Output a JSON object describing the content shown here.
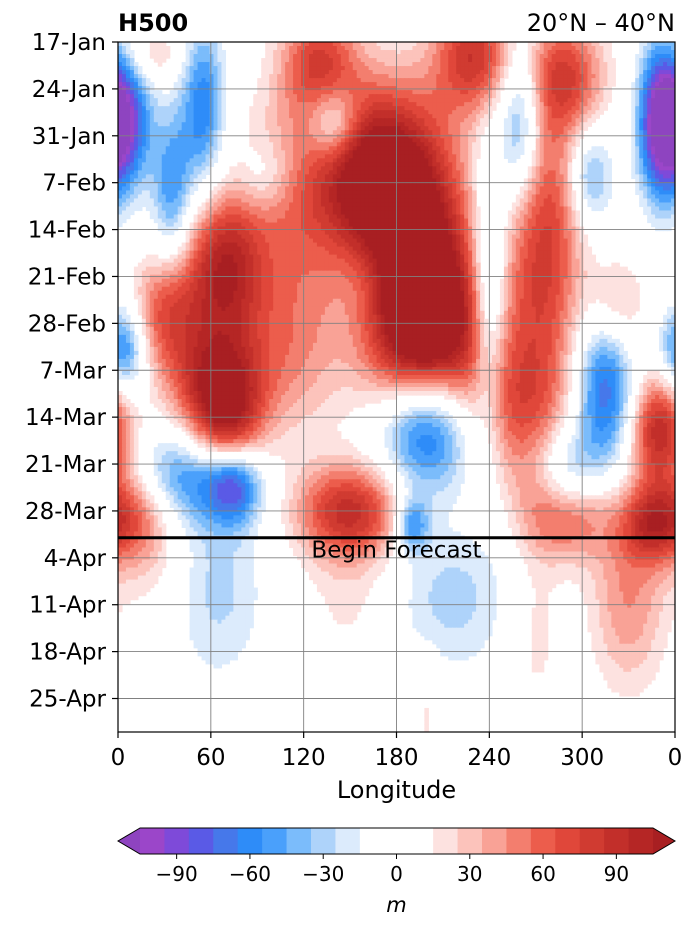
{
  "chart_data": {
    "type": "heatmap",
    "title": "H500",
    "subtitle": "20°N – 40°N",
    "xlabel": "Longitude",
    "x_ticks": [
      "0",
      "60",
      "120",
      "180",
      "240",
      "300",
      "0"
    ],
    "x_tick_values": [
      0,
      60,
      120,
      180,
      240,
      300,
      360
    ],
    "xlim": [
      0,
      360
    ],
    "y_ticks": [
      "17-Jan",
      "24-Jan",
      "31-Jan",
      "7-Feb",
      "14-Feb",
      "21-Feb",
      "28-Feb",
      "7-Mar",
      "14-Mar",
      "21-Mar",
      "28-Mar",
      "4-Apr",
      "11-Apr",
      "18-Apr",
      "25-Apr"
    ],
    "y_tick_days": [
      0,
      7,
      14,
      21,
      28,
      35,
      42,
      49,
      56,
      63,
      70,
      77,
      84,
      91,
      98
    ],
    "ylim_days": [
      0,
      103
    ],
    "y_direction": "downward",
    "grid": true,
    "forecast_start_day": 74,
    "forecast_label": "Begin Forecast",
    "colorbar": {
      "label": "m",
      "ticks": [
        "−90",
        "−60",
        "−30",
        "0",
        "30",
        "60",
        "90"
      ],
      "tick_values": [
        -90,
        -60,
        -30,
        0,
        30,
        60,
        90
      ],
      "levels": [
        -105,
        -95,
        -85,
        -75,
        -65,
        -55,
        -45,
        -35,
        -25,
        -15,
        0,
        15,
        25,
        35,
        45,
        55,
        65,
        75,
        85,
        95,
        105
      ],
      "colors": [
        "#9b46c9",
        "#7e4ad9",
        "#5a5ae6",
        "#4678ea",
        "#2e8cf8",
        "#4aa0fb",
        "#7bbcfb",
        "#aed3fa",
        "#dcebfc",
        "#ffffff",
        "#ffffff",
        "#fde2e0",
        "#fcc3bb",
        "#f9a296",
        "#f37e6e",
        "#ec5d4c",
        "#e0473a",
        "#d03b31",
        "#c22f2a",
        "#b52625"
      ],
      "extend": "both",
      "under_color": "#8e44c0",
      "over_color": "#a81f22"
    },
    "features": [
      {
        "lon": 4,
        "day": 12,
        "value": -95,
        "rlon": 12,
        "rday": 7
      },
      {
        "lon": 4,
        "day": 46,
        "value": -70,
        "rlon": 10,
        "rday": 5
      },
      {
        "lon": 22,
        "day": 2,
        "value": 30,
        "rlon": 14,
        "rday": 3
      },
      {
        "lon": 35,
        "day": 22,
        "value": -55,
        "rlon": 9,
        "rday": 8
      },
      {
        "lon": 30,
        "day": 40,
        "value": 60,
        "rlon": 16,
        "rday": 6
      },
      {
        "lon": 55,
        "day": 10,
        "value": -65,
        "rlon": 10,
        "rday": 9
      },
      {
        "lon": 68,
        "day": 34,
        "value": 95,
        "rlon": 18,
        "rday": 8
      },
      {
        "lon": 60,
        "day": 50,
        "value": 70,
        "rlon": 22,
        "rday": 6
      },
      {
        "lon": 70,
        "day": 57,
        "value": 85,
        "rlon": 16,
        "rday": 6
      },
      {
        "lon": 45,
        "day": 65,
        "value": -60,
        "rlon": 28,
        "rday": 5
      },
      {
        "lon": 75,
        "day": 66,
        "value": -70,
        "rlon": 12,
        "rday": 4
      },
      {
        "lon": 10,
        "day": 70,
        "value": 60,
        "rlon": 18,
        "rday": 5
      },
      {
        "lon": 95,
        "day": 20,
        "value": -30,
        "rlon": 14,
        "rday": 4
      },
      {
        "lon": 120,
        "day": 22,
        "value": 55,
        "rlon": 30,
        "rday": 10
      },
      {
        "lon": 110,
        "day": 45,
        "value": 45,
        "rlon": 25,
        "rday": 10
      },
      {
        "lon": 130,
        "day": 3,
        "value": 70,
        "rlon": 18,
        "rday": 6
      },
      {
        "lon": 140,
        "day": 12,
        "value": -55,
        "rlon": 12,
        "rday": 4
      },
      {
        "lon": 165,
        "day": 20,
        "value": 100,
        "rlon": 22,
        "rday": 9
      },
      {
        "lon": 195,
        "day": 30,
        "value": 110,
        "rlon": 24,
        "rday": 14
      },
      {
        "lon": 200,
        "day": 44,
        "value": 105,
        "rlon": 28,
        "rday": 9
      },
      {
        "lon": 162,
        "day": 35,
        "value": -20,
        "rlon": 15,
        "rday": 6
      },
      {
        "lon": 200,
        "day": 57,
        "value": -105,
        "rlon": 22,
        "rday": 7
      },
      {
        "lon": 150,
        "day": 70,
        "value": 85,
        "rlon": 25,
        "rday": 5
      },
      {
        "lon": 190,
        "day": 72,
        "value": -60,
        "rlon": 8,
        "rday": 3
      },
      {
        "lon": 230,
        "day": 2,
        "value": 80,
        "rlon": 18,
        "rday": 6
      },
      {
        "lon": 260,
        "day": 12,
        "value": -70,
        "rlon": 10,
        "rday": 9
      },
      {
        "lon": 240,
        "day": 38,
        "value": -60,
        "rlon": 8,
        "rday": 14
      },
      {
        "lon": 275,
        "day": 30,
        "value": 80,
        "rlon": 18,
        "rday": 16
      },
      {
        "lon": 255,
        "day": 55,
        "value": 55,
        "rlon": 25,
        "rday": 8
      },
      {
        "lon": 290,
        "day": 5,
        "value": 65,
        "rlon": 18,
        "rday": 6
      },
      {
        "lon": 305,
        "day": 20,
        "value": -50,
        "rlon": 10,
        "rday": 5
      },
      {
        "lon": 320,
        "day": 40,
        "value": 60,
        "rlon": 14,
        "rday": 6
      },
      {
        "lon": 315,
        "day": 50,
        "value": -85,
        "rlon": 14,
        "rday": 10
      },
      {
        "lon": 290,
        "day": 65,
        "value": -60,
        "rlon": 14,
        "rday": 5
      },
      {
        "lon": 290,
        "day": 70,
        "value": 75,
        "rlon": 20,
        "rday": 5
      },
      {
        "lon": 350,
        "day": 12,
        "value": -95,
        "rlon": 10,
        "rday": 8
      },
      {
        "lon": 350,
        "day": 58,
        "value": 95,
        "rlon": 14,
        "rday": 6
      },
      {
        "lon": 345,
        "day": 72,
        "value": 65,
        "rlon": 14,
        "rday": 4
      },
      {
        "lon": 65,
        "day": 82,
        "value": -28,
        "rlon": 22,
        "rday": 10
      },
      {
        "lon": 215,
        "day": 83,
        "value": -30,
        "rlon": 28,
        "rday": 8
      },
      {
        "lon": 270,
        "day": 88,
        "value": 20,
        "rlon": 12,
        "rday": 10
      },
      {
        "lon": 330,
        "day": 83,
        "value": 45,
        "rlon": 18,
        "rday": 10
      },
      {
        "lon": 200,
        "day": 100,
        "value": 18,
        "rlon": 6,
        "rday": 6
      },
      {
        "lon": 20,
        "day": 78,
        "value": 18,
        "rlon": 16,
        "rday": 6
      },
      {
        "lon": 150,
        "day": 83,
        "value": 18,
        "rlon": 22,
        "rday": 9
      }
    ]
  }
}
